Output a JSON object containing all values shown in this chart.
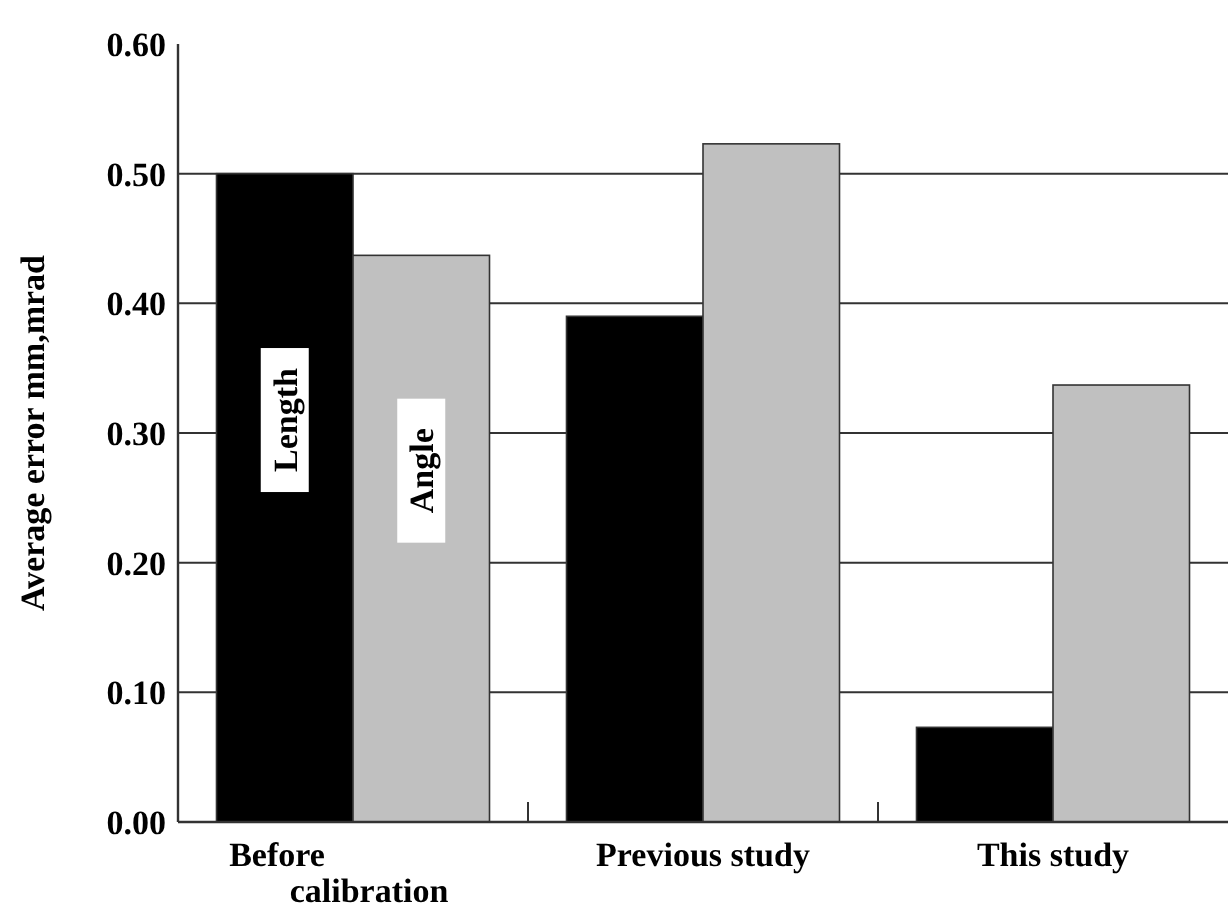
{
  "chart_data": {
    "type": "bar",
    "ylabel": "Average error mm,mrad",
    "categories": [
      "Before calibration",
      "Previous study",
      "This study"
    ],
    "series": [
      {
        "name": "Length",
        "color": "#000000",
        "values": [
          0.5,
          0.39,
          0.073
        ]
      },
      {
        "name": "Angle",
        "color": "#c0c0c0",
        "values": [
          0.437,
          0.523,
          0.337
        ]
      }
    ],
    "ylim": [
      0,
      0.6
    ],
    "yticks": [
      {
        "value": 0,
        "label": "0.00"
      },
      {
        "value": 0.1,
        "label": "0.10"
      },
      {
        "value": 0.2,
        "label": "0.20"
      },
      {
        "value": 0.3,
        "label": "0.30"
      },
      {
        "value": 0.4,
        "label": "0.40"
      },
      {
        "value": 0.5,
        "label": "0.50"
      },
      {
        "value": 0.6,
        "label": "0.60"
      }
    ],
    "grid": "y",
    "legend": false
  }
}
